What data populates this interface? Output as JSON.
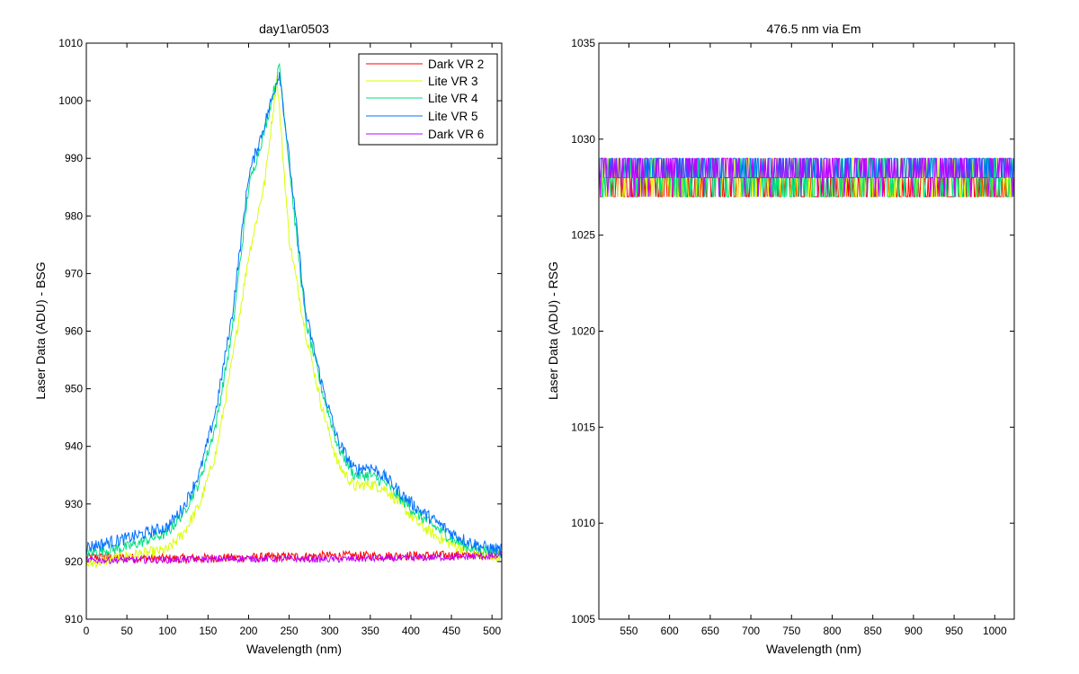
{
  "figure": {
    "background": "#ffffff",
    "axis_color": "#000000"
  },
  "chart_data": [
    {
      "type": "line",
      "title": "day1\\ar0503",
      "xlabel": "Wavelength (nm)",
      "ylabel": "Laser Data (ADU) - BSG",
      "xlim": [
        0,
        512
      ],
      "ylim": [
        910,
        1010
      ],
      "xticks": [
        0,
        50,
        100,
        150,
        200,
        250,
        300,
        350,
        400,
        450,
        500
      ],
      "yticks": [
        910,
        920,
        930,
        940,
        950,
        960,
        970,
        980,
        990,
        1000,
        1010
      ],
      "grid": false,
      "legend": {
        "position": "top-right"
      },
      "series": [
        {
          "name": "Dark VR 2",
          "color": "#ff0000",
          "x": [
            0,
            100,
            200,
            300,
            400,
            512
          ],
          "y": [
            920.8,
            920.5,
            920.7,
            921.0,
            921.0,
            921.2
          ],
          "noise": 0.8
        },
        {
          "name": "Lite VR 3",
          "color": "#d9ff00",
          "x": [
            0,
            50,
            100,
            120,
            140,
            160,
            180,
            200,
            220,
            235,
            250,
            270,
            290,
            310,
            330,
            350,
            370,
            390,
            410,
            430,
            450,
            470,
            490,
            512
          ],
          "y": [
            919.5,
            921.0,
            922.0,
            925.0,
            930.0,
            939.0,
            955.0,
            973.0,
            986.0,
            1004.0,
            976.0,
            960.0,
            947.0,
            937.0,
            933.0,
            933.5,
            932.5,
            929.5,
            926.5,
            924.5,
            923.0,
            922.0,
            921.0,
            921.0
          ],
          "noise": 1.0
        },
        {
          "name": "Lite VR 4",
          "color": "#00e080",
          "x": [
            0,
            50,
            100,
            120,
            140,
            160,
            180,
            200,
            220,
            238,
            255,
            270,
            290,
            310,
            330,
            350,
            370,
            390,
            410,
            430,
            450,
            470,
            490,
            512
          ],
          "y": [
            921.5,
            922.5,
            925.0,
            928.5,
            934.0,
            944.0,
            960.0,
            985.0,
            995.0,
            1006.0,
            982.0,
            962.0,
            950.0,
            940.0,
            935.0,
            935.0,
            933.5,
            930.5,
            928.0,
            926.0,
            924.0,
            922.5,
            922.0,
            921.5
          ],
          "noise": 1.0
        },
        {
          "name": "Lite VR 5",
          "color": "#0070ff",
          "x": [
            0,
            50,
            100,
            120,
            140,
            160,
            180,
            200,
            220,
            238,
            255,
            270,
            290,
            310,
            330,
            350,
            370,
            390,
            410,
            430,
            450,
            470,
            490,
            512
          ],
          "y": [
            922.5,
            924.0,
            926.0,
            929.5,
            935.5,
            946.5,
            963.0,
            987.0,
            996.0,
            1005.0,
            983.5,
            963.5,
            951.0,
            941.0,
            936.0,
            936.5,
            934.5,
            931.5,
            929.0,
            927.0,
            925.0,
            923.5,
            922.5,
            922.0
          ],
          "noise": 1.1
        },
        {
          "name": "Dark VR 6",
          "color": "#c000ff",
          "x": [
            0,
            100,
            200,
            300,
            400,
            512
          ],
          "y": [
            920.2,
            920.3,
            920.5,
            920.4,
            920.6,
            921.0
          ],
          "noise": 0.6
        }
      ]
    },
    {
      "type": "line",
      "title": "476.5 nm via Em",
      "xlabel": "Wavelength (nm)",
      "ylabel": "Laser Data (ADU) - RSG",
      "xlim": [
        513,
        1024
      ],
      "ylim": [
        1005,
        1035
      ],
      "xticks": [
        550,
        600,
        650,
        700,
        750,
        800,
        850,
        900,
        950,
        1000
      ],
      "yticks": [
        1005,
        1010,
        1015,
        1020,
        1025,
        1030,
        1035
      ],
      "grid": false,
      "series": [
        {
          "name": "Dark VR 2",
          "color": "#ff0000",
          "level": 1027.5,
          "spread": 1.0
        },
        {
          "name": "Lite VR 3",
          "color": "#d9ff00",
          "level": 1028.0,
          "spread": 1.0
        },
        {
          "name": "Lite VR 4",
          "color": "#00e080",
          "level": 1028.0,
          "spread": 1.0
        },
        {
          "name": "Lite VR 5",
          "color": "#0070ff",
          "level": 1028.5,
          "spread": 1.0
        },
        {
          "name": "Dark VR 6",
          "color": "#c000ff",
          "level": 1028.3,
          "spread": 0.9
        }
      ]
    }
  ]
}
